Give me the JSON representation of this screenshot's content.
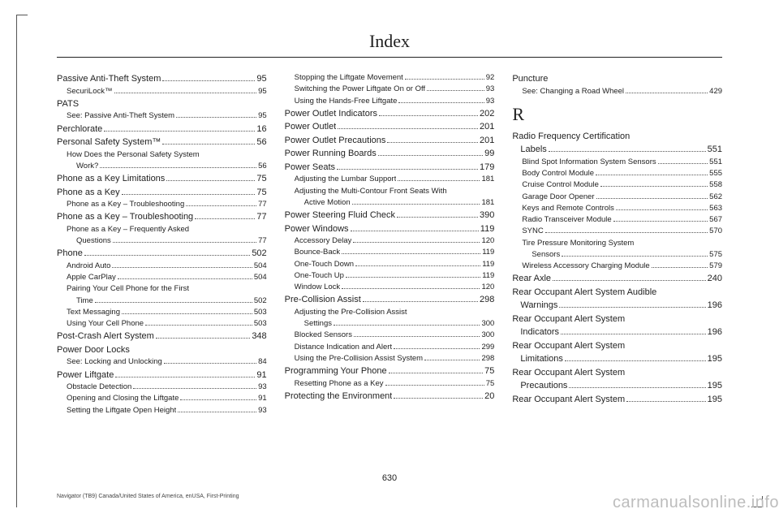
{
  "title": "Index",
  "page_number": "630",
  "footnote": "Navigator (TB9) Canada/United States of America, enUSA, First-Printing",
  "watermark": "carmanualsonline.info",
  "section_letter": "R",
  "columns": [
    [
      {
        "t": "main",
        "label": "Passive Anti-Theft System",
        "page": "95"
      },
      {
        "t": "sub",
        "label": "SecuriLock™",
        "page": "95"
      },
      {
        "t": "main",
        "label": "PATS",
        "nopage": true
      },
      {
        "t": "sub",
        "label": "See: Passive Anti-Theft System",
        "page": "95"
      },
      {
        "t": "main",
        "label": "Perchlorate",
        "page": "16"
      },
      {
        "t": "main",
        "label": "Personal Safety System™",
        "page": "56"
      },
      {
        "t": "sub",
        "label": "How Does the Personal Safety System",
        "nopage": true
      },
      {
        "t": "sub2",
        "label": "Work?",
        "page": "56"
      },
      {
        "t": "main",
        "label": "Phone as a Key Limitations",
        "page": "75"
      },
      {
        "t": "main",
        "label": "Phone as a Key",
        "page": "75"
      },
      {
        "t": "sub",
        "label": "Phone as a Key – Troubleshooting",
        "page": "77"
      },
      {
        "t": "main",
        "label": "Phone as a Key – Troubleshooting",
        "page": "77"
      },
      {
        "t": "sub",
        "label": "Phone as a Key – Frequently Asked",
        "nopage": true
      },
      {
        "t": "sub2",
        "label": "Questions",
        "page": "77"
      },
      {
        "t": "main",
        "label": "Phone",
        "page": "502"
      },
      {
        "t": "sub",
        "label": "Android Auto",
        "page": "504"
      },
      {
        "t": "sub",
        "label": "Apple CarPlay",
        "page": "504"
      },
      {
        "t": "sub",
        "label": "Pairing Your Cell Phone for the First",
        "nopage": true
      },
      {
        "t": "sub2",
        "label": "Time",
        "page": "502"
      },
      {
        "t": "sub",
        "label": "Text Messaging",
        "page": "503"
      },
      {
        "t": "sub",
        "label": "Using Your Cell Phone",
        "page": "503"
      },
      {
        "t": "main",
        "label": "Post-Crash Alert System",
        "page": "348"
      },
      {
        "t": "main",
        "label": "Power Door Locks",
        "nopage": true
      },
      {
        "t": "sub",
        "label": "See: Locking and Unlocking",
        "page": "84"
      },
      {
        "t": "main",
        "label": "Power Liftgate",
        "page": "91"
      },
      {
        "t": "sub",
        "label": "Obstacle Detection",
        "page": "93"
      },
      {
        "t": "sub",
        "label": "Opening and Closing the Liftgate",
        "page": "91"
      },
      {
        "t": "sub",
        "label": "Setting the Liftgate Open Height",
        "page": "93"
      }
    ],
    [
      {
        "t": "sub",
        "label": "Stopping the Liftgate Movement",
        "page": "92"
      },
      {
        "t": "sub",
        "label": "Switching the Power Liftgate On or Off",
        "page": "93"
      },
      {
        "t": "sub",
        "label": "Using the Hands-Free Liftgate",
        "page": "93"
      },
      {
        "t": "main",
        "label": "Power Outlet Indicators",
        "page": "202"
      },
      {
        "t": "main",
        "label": "Power Outlet",
        "page": "201"
      },
      {
        "t": "main",
        "label": "Power Outlet Precautions",
        "page": "201"
      },
      {
        "t": "main",
        "label": "Power Running Boards",
        "page": "99"
      },
      {
        "t": "main",
        "label": "Power Seats",
        "page": "179"
      },
      {
        "t": "sub",
        "label": "Adjusting the Lumbar Support",
        "page": "181"
      },
      {
        "t": "sub",
        "label": "Adjusting the Multi-Contour Front Seats With",
        "nopage": true
      },
      {
        "t": "sub2",
        "label": "Active Motion",
        "page": "181"
      },
      {
        "t": "main",
        "label": "Power Steering Fluid Check",
        "page": "390"
      },
      {
        "t": "main",
        "label": "Power Windows",
        "page": "119"
      },
      {
        "t": "sub",
        "label": "Accessory Delay",
        "page": "120"
      },
      {
        "t": "sub",
        "label": "Bounce-Back",
        "page": "119"
      },
      {
        "t": "sub",
        "label": "One-Touch Down",
        "page": "119"
      },
      {
        "t": "sub",
        "label": "One-Touch Up",
        "page": "119"
      },
      {
        "t": "sub",
        "label": "Window Lock",
        "page": "120"
      },
      {
        "t": "main",
        "label": "Pre-Collision Assist",
        "page": "298"
      },
      {
        "t": "sub",
        "label": "Adjusting the Pre-Collision Assist",
        "nopage": true
      },
      {
        "t": "sub2",
        "label": "Settings",
        "page": "300"
      },
      {
        "t": "sub",
        "label": "Blocked Sensors",
        "page": "300"
      },
      {
        "t": "sub",
        "label": "Distance Indication and Alert",
        "page": "299"
      },
      {
        "t": "sub",
        "label": "Using the Pre-Collision Assist System",
        "page": "298"
      },
      {
        "t": "main",
        "label": "Programming Your Phone",
        "page": "75"
      },
      {
        "t": "sub",
        "label": "Resetting Phone as a Key",
        "page": "75"
      },
      {
        "t": "main",
        "label": "Protecting the Environment",
        "page": "20"
      }
    ],
    [
      {
        "t": "main",
        "label": "Puncture",
        "nopage": true
      },
      {
        "t": "sub",
        "label": "See: Changing a Road Wheel",
        "page": "429"
      },
      {
        "t": "letter"
      },
      {
        "t": "main",
        "label": "Radio Frequency Certification",
        "nopage": true
      },
      {
        "t": "mainct",
        "label": "Labels",
        "page": "551"
      },
      {
        "t": "sub",
        "label": "Blind Spot Information System Sensors",
        "page": "551"
      },
      {
        "t": "sub",
        "label": "Body Control Module",
        "page": "555"
      },
      {
        "t": "sub",
        "label": "Cruise Control Module",
        "page": "558"
      },
      {
        "t": "sub",
        "label": "Garage Door Opener",
        "page": "562"
      },
      {
        "t": "sub",
        "label": "Keys and Remote Controls",
        "page": "563"
      },
      {
        "t": "sub",
        "label": "Radio Transceiver Module",
        "page": "567"
      },
      {
        "t": "sub",
        "label": "SYNC",
        "page": "570"
      },
      {
        "t": "sub",
        "label": "Tire Pressure Monitoring System",
        "nopage": true
      },
      {
        "t": "sub2",
        "label": "Sensors",
        "page": "575"
      },
      {
        "t": "sub",
        "label": "Wireless Accessory Charging Module",
        "page": "579"
      },
      {
        "t": "main",
        "label": "Rear Axle",
        "page": "240"
      },
      {
        "t": "main",
        "label": "Rear Occupant Alert System Audible",
        "nopage": true
      },
      {
        "t": "mainct",
        "label": "Warnings",
        "page": "196"
      },
      {
        "t": "main",
        "label": "Rear Occupant Alert System",
        "nopage": true
      },
      {
        "t": "mainct",
        "label": "Indicators",
        "page": "196"
      },
      {
        "t": "main",
        "label": "Rear Occupant Alert System",
        "nopage": true
      },
      {
        "t": "mainct",
        "label": "Limitations",
        "page": "195"
      },
      {
        "t": "main",
        "label": "Rear Occupant Alert System",
        "nopage": true
      },
      {
        "t": "mainct",
        "label": "Precautions",
        "page": "195"
      },
      {
        "t": "main",
        "label": "Rear Occupant Alert System",
        "page": "195"
      }
    ]
  ]
}
